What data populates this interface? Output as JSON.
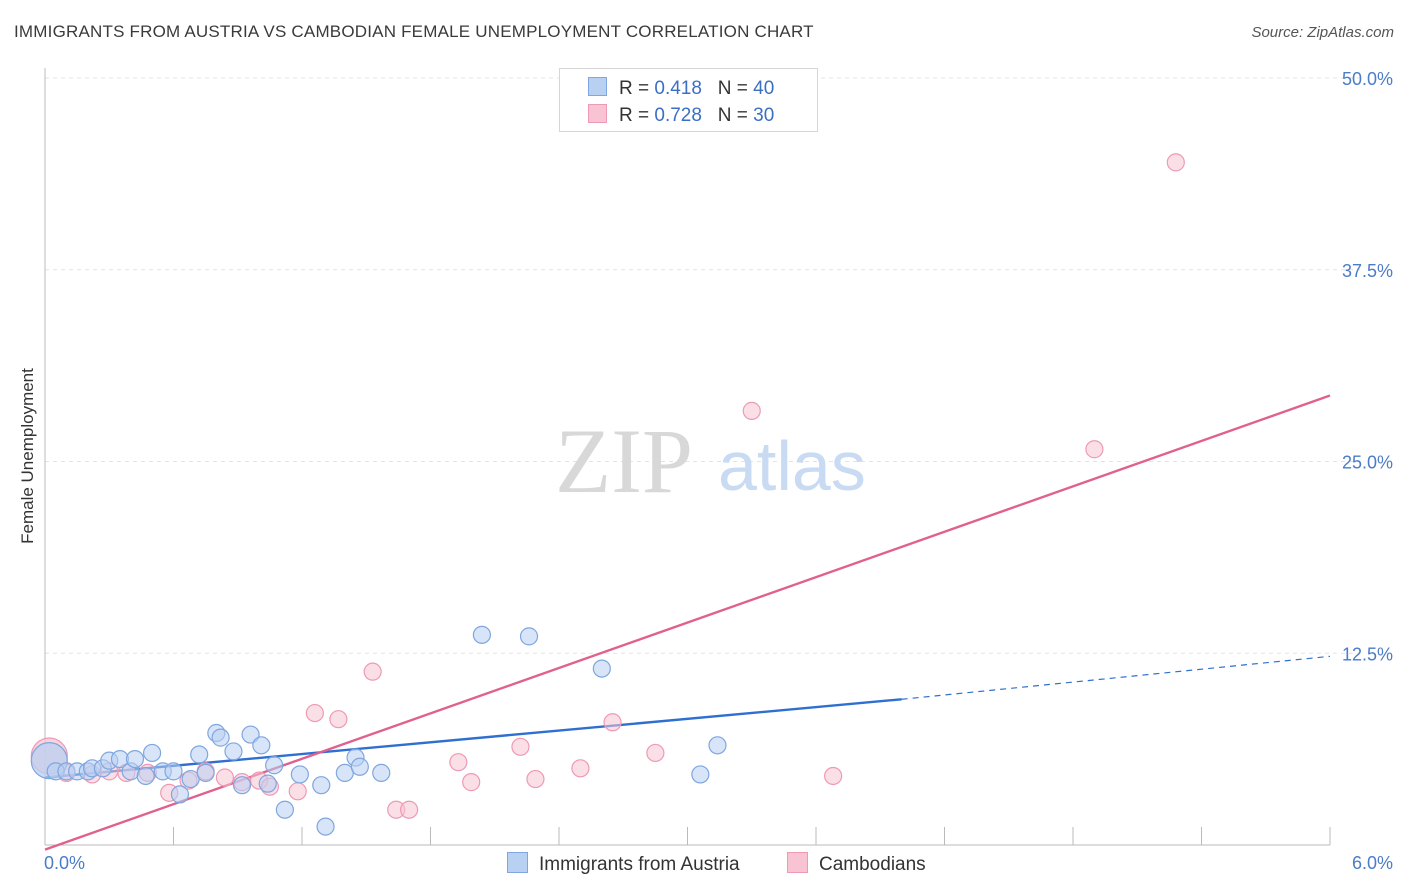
{
  "title": "IMMIGRANTS FROM AUSTRIA VS CAMBODIAN FEMALE UNEMPLOYMENT CORRELATION CHART",
  "source": "Source: ZipAtlas.com",
  "watermark": {
    "zip": "ZIP",
    "atlas": "atlas"
  },
  "legend": {
    "rows": [
      {
        "r_label": "R =",
        "r_value": "0.418",
        "n_label": "N =",
        "n_value": "40"
      },
      {
        "r_label": "R =",
        "r_value": "0.728",
        "n_label": "N =",
        "n_value": "30"
      }
    ]
  },
  "colors": {
    "blue_fill": "#b8d0f2",
    "blue_stroke": "#7fa6df",
    "blue_line": "#2f6fd0",
    "pink_fill": "#f8c4d4",
    "pink_stroke": "#ee9ab4",
    "pink_line": "#e0608e",
    "grid": "#e3e3e3",
    "tick_text": "#4a7cc7"
  },
  "chart_data": {
    "type": "scatter",
    "title": "IMMIGRANTS FROM AUSTRIA VS CAMBODIAN FEMALE UNEMPLOYMENT CORRELATION CHART",
    "xlabel": "",
    "ylabel": "Female Unemployment",
    "xlim": [
      0,
      6
    ],
    "ylim": [
      0,
      50
    ],
    "x_tick_labels": [
      "0.0%",
      "6.0%"
    ],
    "y_ticks": [
      12.5,
      25,
      37.5,
      50
    ],
    "y_tick_labels": [
      "12.5%",
      "25.0%",
      "37.5%",
      "50.0%"
    ],
    "series": [
      {
        "name": "Immigrants from Austria",
        "r": 0.418,
        "n": 40,
        "points": [
          {
            "x": 0.02,
            "y": 5.5,
            "big": true
          },
          {
            "x": 0.05,
            "y": 4.8
          },
          {
            "x": 0.1,
            "y": 4.8
          },
          {
            "x": 0.15,
            "y": 4.8
          },
          {
            "x": 0.2,
            "y": 4.8
          },
          {
            "x": 0.22,
            "y": 5.0
          },
          {
            "x": 0.27,
            "y": 5.0
          },
          {
            "x": 0.3,
            "y": 5.5
          },
          {
            "x": 0.35,
            "y": 5.6
          },
          {
            "x": 0.4,
            "y": 4.8
          },
          {
            "x": 0.42,
            "y": 5.6
          },
          {
            "x": 0.47,
            "y": 4.5
          },
          {
            "x": 0.5,
            "y": 6.0
          },
          {
            "x": 0.55,
            "y": 4.8
          },
          {
            "x": 0.6,
            "y": 4.8
          },
          {
            "x": 0.63,
            "y": 3.3
          },
          {
            "x": 0.68,
            "y": 4.3
          },
          {
            "x": 0.72,
            "y": 5.9
          },
          {
            "x": 0.75,
            "y": 4.7
          },
          {
            "x": 0.8,
            "y": 7.3
          },
          {
            "x": 0.82,
            "y": 7.0
          },
          {
            "x": 0.88,
            "y": 6.1
          },
          {
            "x": 0.92,
            "y": 3.9
          },
          {
            "x": 0.96,
            "y": 7.2
          },
          {
            "x": 1.01,
            "y": 6.5
          },
          {
            "x": 1.04,
            "y": 4.0
          },
          {
            "x": 1.07,
            "y": 5.2
          },
          {
            "x": 1.12,
            "y": 2.3
          },
          {
            "x": 1.19,
            "y": 4.6
          },
          {
            "x": 1.29,
            "y": 3.9
          },
          {
            "x": 1.31,
            "y": 1.2
          },
          {
            "x": 1.4,
            "y": 4.7
          },
          {
            "x": 1.45,
            "y": 5.7
          },
          {
            "x": 1.47,
            "y": 5.1
          },
          {
            "x": 1.57,
            "y": 4.7
          },
          {
            "x": 2.04,
            "y": 13.7
          },
          {
            "x": 2.26,
            "y": 13.6
          },
          {
            "x": 2.6,
            "y": 11.5
          },
          {
            "x": 3.06,
            "y": 4.6
          },
          {
            "x": 3.14,
            "y": 6.5
          }
        ],
        "trend": {
          "x0": 0,
          "y0": 4.4,
          "x1": 4.0,
          "y1": 9.5,
          "dash_x1": 6.0,
          "dash_y1": 12.3
        }
      },
      {
        "name": "Cambodians",
        "r": 0.728,
        "n": 30,
        "points": [
          {
            "x": 0.02,
            "y": 5.8,
            "big": true
          },
          {
            "x": 0.1,
            "y": 4.7
          },
          {
            "x": 0.22,
            "y": 4.6
          },
          {
            "x": 0.3,
            "y": 4.8
          },
          {
            "x": 0.38,
            "y": 4.7
          },
          {
            "x": 0.48,
            "y": 4.7
          },
          {
            "x": 0.58,
            "y": 3.4
          },
          {
            "x": 0.67,
            "y": 4.2
          },
          {
            "x": 0.75,
            "y": 4.8
          },
          {
            "x": 0.84,
            "y": 4.4
          },
          {
            "x": 0.92,
            "y": 4.1
          },
          {
            "x": 1.0,
            "y": 4.2
          },
          {
            "x": 1.05,
            "y": 3.8
          },
          {
            "x": 1.18,
            "y": 3.5
          },
          {
            "x": 1.26,
            "y": 8.6
          },
          {
            "x": 1.37,
            "y": 8.2
          },
          {
            "x": 1.53,
            "y": 11.3
          },
          {
            "x": 1.64,
            "y": 2.3
          },
          {
            "x": 1.7,
            "y": 2.3
          },
          {
            "x": 1.93,
            "y": 5.4
          },
          {
            "x": 1.99,
            "y": 4.1
          },
          {
            "x": 2.22,
            "y": 6.4
          },
          {
            "x": 2.29,
            "y": 4.3
          },
          {
            "x": 2.5,
            "y": 5.0
          },
          {
            "x": 2.65,
            "y": 8.0
          },
          {
            "x": 2.85,
            "y": 6.0
          },
          {
            "x": 3.3,
            "y": 28.3
          },
          {
            "x": 3.68,
            "y": 4.5
          },
          {
            "x": 4.9,
            "y": 25.8
          },
          {
            "x": 5.28,
            "y": 44.5
          }
        ],
        "trend": {
          "x0": 0,
          "y0": -0.3,
          "x1": 6.0,
          "y1": 29.3
        }
      }
    ],
    "legend_position": "top-center"
  }
}
